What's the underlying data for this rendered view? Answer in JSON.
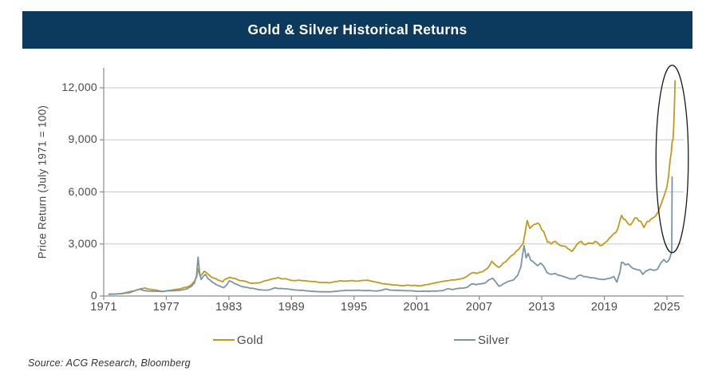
{
  "header": {
    "title": "Gold & Silver Historical Returns"
  },
  "footer": {
    "source": "Source: ACG Research, Bloomberg"
  },
  "colors": {
    "background": "#FFFFFF",
    "title_bar": "#0C3A5E",
    "title_text": "#FFFFFF",
    "gold": "#C29B18",
    "silver": "#7C95A6",
    "gridline": "#C8C8C8",
    "axis": "#8C8C8C",
    "tick_text": "#4A4A4A",
    "text": "#333333",
    "annotation": "#1A1A1A"
  },
  "chart_data": {
    "type": "line",
    "title": "Gold & Silver Historical Returns",
    "xlabel": "",
    "ylabel": "Price Return (July 1971 = 100)",
    "xlim": [
      1971,
      2026.6
    ],
    "ylim": [
      0,
      13200
    ],
    "grid": "horizontal",
    "legend_position": "bottom",
    "x_axis": {
      "ticks": [
        {
          "value": 1971,
          "label": "1971"
        },
        {
          "value": 1977,
          "label": "1977"
        },
        {
          "value": 1983,
          "label": "1983"
        },
        {
          "value": 1989,
          "label": "1989"
        },
        {
          "value": 1995,
          "label": "1995"
        },
        {
          "value": 2001,
          "label": "2001"
        },
        {
          "value": 2007,
          "label": "2007"
        },
        {
          "value": 2013,
          "label": "2013"
        },
        {
          "value": 2019,
          "label": "2019"
        },
        {
          "value": 2025,
          "label": "2025"
        }
      ]
    },
    "y_axis": {
      "ticks": [
        {
          "value": 0,
          "label": "0"
        },
        {
          "value": 3000,
          "label": "3,000"
        },
        {
          "value": 6000,
          "label": "6,000"
        },
        {
          "value": 9000,
          "label": "9,000"
        },
        {
          "value": 12000,
          "label": "12,000"
        }
      ]
    },
    "annotations": [
      {
        "shape": "ellipse",
        "highlights": "2025 surge in gold and silver",
        "x_center": 2025.5,
        "y_center": 7900,
        "x_radius_years": 1.55,
        "y_radius_value": 5400
      }
    ],
    "series": [
      {
        "name": "Gold",
        "color": "#C29B18",
        "points": [
          [
            1971.5,
            100
          ],
          [
            1971.8,
            105
          ],
          [
            1972.2,
            120
          ],
          [
            1972.6,
            140
          ],
          [
            1973.0,
            180
          ],
          [
            1973.4,
            240
          ],
          [
            1973.8,
            290
          ],
          [
            1974.2,
            360
          ],
          [
            1974.6,
            430
          ],
          [
            1974.95,
            470
          ],
          [
            1975.3,
            400
          ],
          [
            1975.7,
            360
          ],
          [
            1976.1,
            330
          ],
          [
            1976.6,
            270
          ],
          [
            1977.0,
            300
          ],
          [
            1977.5,
            340
          ],
          [
            1978.0,
            390
          ],
          [
            1978.5,
            450
          ],
          [
            1979.0,
            520
          ],
          [
            1979.4,
            650
          ],
          [
            1979.7,
            850
          ],
          [
            1979.9,
            1100
          ],
          [
            1980.05,
            1560
          ],
          [
            1980.25,
            1150
          ],
          [
            1980.45,
            1280
          ],
          [
            1980.65,
            1430
          ],
          [
            1980.9,
            1320
          ],
          [
            1981.2,
            1150
          ],
          [
            1981.6,
            1020
          ],
          [
            1982.0,
            900
          ],
          [
            1982.4,
            820
          ],
          [
            1982.75,
            1000
          ],
          [
            1983.1,
            1080
          ],
          [
            1983.4,
            1020
          ],
          [
            1983.8,
            950
          ],
          [
            1984.3,
            880
          ],
          [
            1984.8,
            800
          ],
          [
            1985.2,
            720
          ],
          [
            1985.7,
            750
          ],
          [
            1986.2,
            820
          ],
          [
            1986.7,
            900
          ],
          [
            1987.2,
            1000
          ],
          [
            1987.75,
            1060
          ],
          [
            1988.2,
            990
          ],
          [
            1988.7,
            950
          ],
          [
            1989.2,
            890
          ],
          [
            1989.7,
            920
          ],
          [
            1990.2,
            880
          ],
          [
            1990.8,
            850
          ],
          [
            1991.4,
            810
          ],
          [
            1992.0,
            780
          ],
          [
            1992.6,
            760
          ],
          [
            1993.2,
            830
          ],
          [
            1993.8,
            880
          ],
          [
            1994.4,
            870
          ],
          [
            1995.0,
            875
          ],
          [
            1995.6,
            880
          ],
          [
            1996.1,
            900
          ],
          [
            1996.6,
            870
          ],
          [
            1997.2,
            790
          ],
          [
            1997.8,
            700
          ],
          [
            1998.4,
            670
          ],
          [
            1999.0,
            640
          ],
          [
            1999.6,
            600
          ],
          [
            2000.1,
            630
          ],
          [
            2000.7,
            610
          ],
          [
            2001.3,
            590
          ],
          [
            2001.9,
            650
          ],
          [
            2002.5,
            720
          ],
          [
            2003.1,
            790
          ],
          [
            2003.7,
            870
          ],
          [
            2004.3,
            920
          ],
          [
            2004.9,
            960
          ],
          [
            2005.5,
            1030
          ],
          [
            2006.0,
            1220
          ],
          [
            2006.4,
            1350
          ],
          [
            2006.8,
            1300
          ],
          [
            2007.3,
            1400
          ],
          [
            2007.8,
            1600
          ],
          [
            2008.2,
            2000
          ],
          [
            2008.55,
            1800
          ],
          [
            2008.85,
            1650
          ],
          [
            2009.3,
            1900
          ],
          [
            2009.8,
            2150
          ],
          [
            2010.3,
            2400
          ],
          [
            2010.8,
            2700
          ],
          [
            2011.2,
            3000
          ],
          [
            2011.6,
            4350
          ],
          [
            2011.85,
            3900
          ],
          [
            2012.1,
            4050
          ],
          [
            2012.45,
            4150
          ],
          [
            2012.8,
            4100
          ],
          [
            2013.2,
            3700
          ],
          [
            2013.55,
            3100
          ],
          [
            2013.9,
            3000
          ],
          [
            2014.3,
            3150
          ],
          [
            2014.8,
            2900
          ],
          [
            2015.3,
            2850
          ],
          [
            2015.9,
            2570
          ],
          [
            2016.4,
            3000
          ],
          [
            2016.8,
            3150
          ],
          [
            2017.2,
            2950
          ],
          [
            2017.7,
            3050
          ],
          [
            2018.1,
            3150
          ],
          [
            2018.6,
            2900
          ],
          [
            2019.0,
            3050
          ],
          [
            2019.5,
            3350
          ],
          [
            2019.9,
            3600
          ],
          [
            2020.3,
            3900
          ],
          [
            2020.65,
            4650
          ],
          [
            2021.0,
            4400
          ],
          [
            2021.3,
            4150
          ],
          [
            2021.7,
            4250
          ],
          [
            2022.1,
            4500
          ],
          [
            2022.5,
            4300
          ],
          [
            2022.8,
            3950
          ],
          [
            2023.1,
            4300
          ],
          [
            2023.5,
            4450
          ],
          [
            2023.9,
            4600
          ],
          [
            2024.2,
            4900
          ],
          [
            2024.5,
            5400
          ],
          [
            2024.8,
            5900
          ],
          [
            2025.0,
            6300
          ],
          [
            2025.15,
            6900
          ],
          [
            2025.3,
            7800
          ],
          [
            2025.42,
            8300
          ],
          [
            2025.5,
            8900
          ],
          [
            2025.58,
            9000
          ],
          [
            2025.65,
            9800
          ],
          [
            2025.72,
            11000
          ],
          [
            2025.78,
            12400
          ]
        ]
      },
      {
        "name": "Silver",
        "color": "#7C95A6",
        "points": [
          [
            1971.5,
            100
          ],
          [
            1971.9,
            108
          ],
          [
            1972.3,
            118
          ],
          [
            1972.7,
            135
          ],
          [
            1973.1,
            165
          ],
          [
            1973.5,
            195
          ],
          [
            1973.9,
            280
          ],
          [
            1974.2,
            360
          ],
          [
            1974.5,
            390
          ],
          [
            1974.8,
            320
          ],
          [
            1975.2,
            290
          ],
          [
            1975.6,
            280
          ],
          [
            1976.0,
            270
          ],
          [
            1976.5,
            260
          ],
          [
            1977.0,
            290
          ],
          [
            1977.5,
            300
          ],
          [
            1978.0,
            320
          ],
          [
            1978.5,
            350
          ],
          [
            1979.0,
            420
          ],
          [
            1979.4,
            550
          ],
          [
            1979.7,
            750
          ],
          [
            1979.9,
            1200
          ],
          [
            1980.05,
            2250
          ],
          [
            1980.2,
            1300
          ],
          [
            1980.35,
            950
          ],
          [
            1980.55,
            1150
          ],
          [
            1980.75,
            1250
          ],
          [
            1981.0,
            1000
          ],
          [
            1981.4,
            800
          ],
          [
            1981.8,
            650
          ],
          [
            1982.2,
            550
          ],
          [
            1982.5,
            480
          ],
          [
            1982.8,
            650
          ],
          [
            1983.05,
            880
          ],
          [
            1983.3,
            820
          ],
          [
            1983.6,
            700
          ],
          [
            1984.0,
            600
          ],
          [
            1984.5,
            520
          ],
          [
            1985.0,
            450
          ],
          [
            1985.5,
            420
          ],
          [
            1986.0,
            360
          ],
          [
            1986.5,
            340
          ],
          [
            1987.0,
            380
          ],
          [
            1987.45,
            480
          ],
          [
            1987.8,
            430
          ],
          [
            1988.3,
            420
          ],
          [
            1988.8,
            390
          ],
          [
            1989.3,
            350
          ],
          [
            1989.8,
            330
          ],
          [
            1990.3,
            310
          ],
          [
            1990.9,
            270
          ],
          [
            1991.5,
            250
          ],
          [
            1992.1,
            245
          ],
          [
            1992.7,
            240
          ],
          [
            1993.2,
            270
          ],
          [
            1993.7,
            305
          ],
          [
            1994.2,
            330
          ],
          [
            1994.7,
            320
          ],
          [
            1995.2,
            330
          ],
          [
            1995.7,
            320
          ],
          [
            1996.2,
            315
          ],
          [
            1996.7,
            300
          ],
          [
            1997.2,
            290
          ],
          [
            1997.7,
            340
          ],
          [
            1998.1,
            400
          ],
          [
            1998.5,
            340
          ],
          [
            1999.0,
            330
          ],
          [
            1999.5,
            320
          ],
          [
            2000.0,
            310
          ],
          [
            2000.6,
            300
          ],
          [
            2001.2,
            270
          ],
          [
            2001.8,
            275
          ],
          [
            2002.4,
            285
          ],
          [
            2003.0,
            290
          ],
          [
            2003.6,
            320
          ],
          [
            2004.0,
            420
          ],
          [
            2004.4,
            370
          ],
          [
            2004.9,
            430
          ],
          [
            2005.4,
            450
          ],
          [
            2005.9,
            520
          ],
          [
            2006.3,
            700
          ],
          [
            2006.7,
            650
          ],
          [
            2007.1,
            700
          ],
          [
            2007.6,
            760
          ],
          [
            2008.0,
            950
          ],
          [
            2008.3,
            1020
          ],
          [
            2008.6,
            800
          ],
          [
            2008.9,
            560
          ],
          [
            2009.3,
            700
          ],
          [
            2009.8,
            850
          ],
          [
            2010.3,
            930
          ],
          [
            2010.7,
            1200
          ],
          [
            2011.0,
            1700
          ],
          [
            2011.15,
            2350
          ],
          [
            2011.3,
            2900
          ],
          [
            2011.5,
            2200
          ],
          [
            2011.7,
            2450
          ],
          [
            2011.95,
            2050
          ],
          [
            2012.3,
            1900
          ],
          [
            2012.6,
            1750
          ],
          [
            2012.9,
            1900
          ],
          [
            2013.2,
            1700
          ],
          [
            2013.5,
            1350
          ],
          [
            2013.9,
            1250
          ],
          [
            2014.3,
            1300
          ],
          [
            2014.8,
            1180
          ],
          [
            2015.3,
            1080
          ],
          [
            2015.8,
            980
          ],
          [
            2016.2,
            1000
          ],
          [
            2016.6,
            1200
          ],
          [
            2017.0,
            1120
          ],
          [
            2017.5,
            1080
          ],
          [
            2018.0,
            1050
          ],
          [
            2018.5,
            970
          ],
          [
            2019.0,
            950
          ],
          [
            2019.5,
            1020
          ],
          [
            2019.9,
            1120
          ],
          [
            2020.2,
            800
          ],
          [
            2020.5,
            1400
          ],
          [
            2020.65,
            1950
          ],
          [
            2021.0,
            1800
          ],
          [
            2021.3,
            1850
          ],
          [
            2021.7,
            1600
          ],
          [
            2022.0,
            1550
          ],
          [
            2022.4,
            1500
          ],
          [
            2022.7,
            1250
          ],
          [
            2023.0,
            1450
          ],
          [
            2023.4,
            1550
          ],
          [
            2023.8,
            1480
          ],
          [
            2024.1,
            1550
          ],
          [
            2024.4,
            1900
          ],
          [
            2024.7,
            2100
          ],
          [
            2024.95,
            1950
          ],
          [
            2025.1,
            2000
          ],
          [
            2025.25,
            2150
          ],
          [
            2025.38,
            2400
          ],
          [
            2025.46,
            2550
          ],
          [
            2025.5,
            6860
          ]
        ]
      }
    ]
  }
}
